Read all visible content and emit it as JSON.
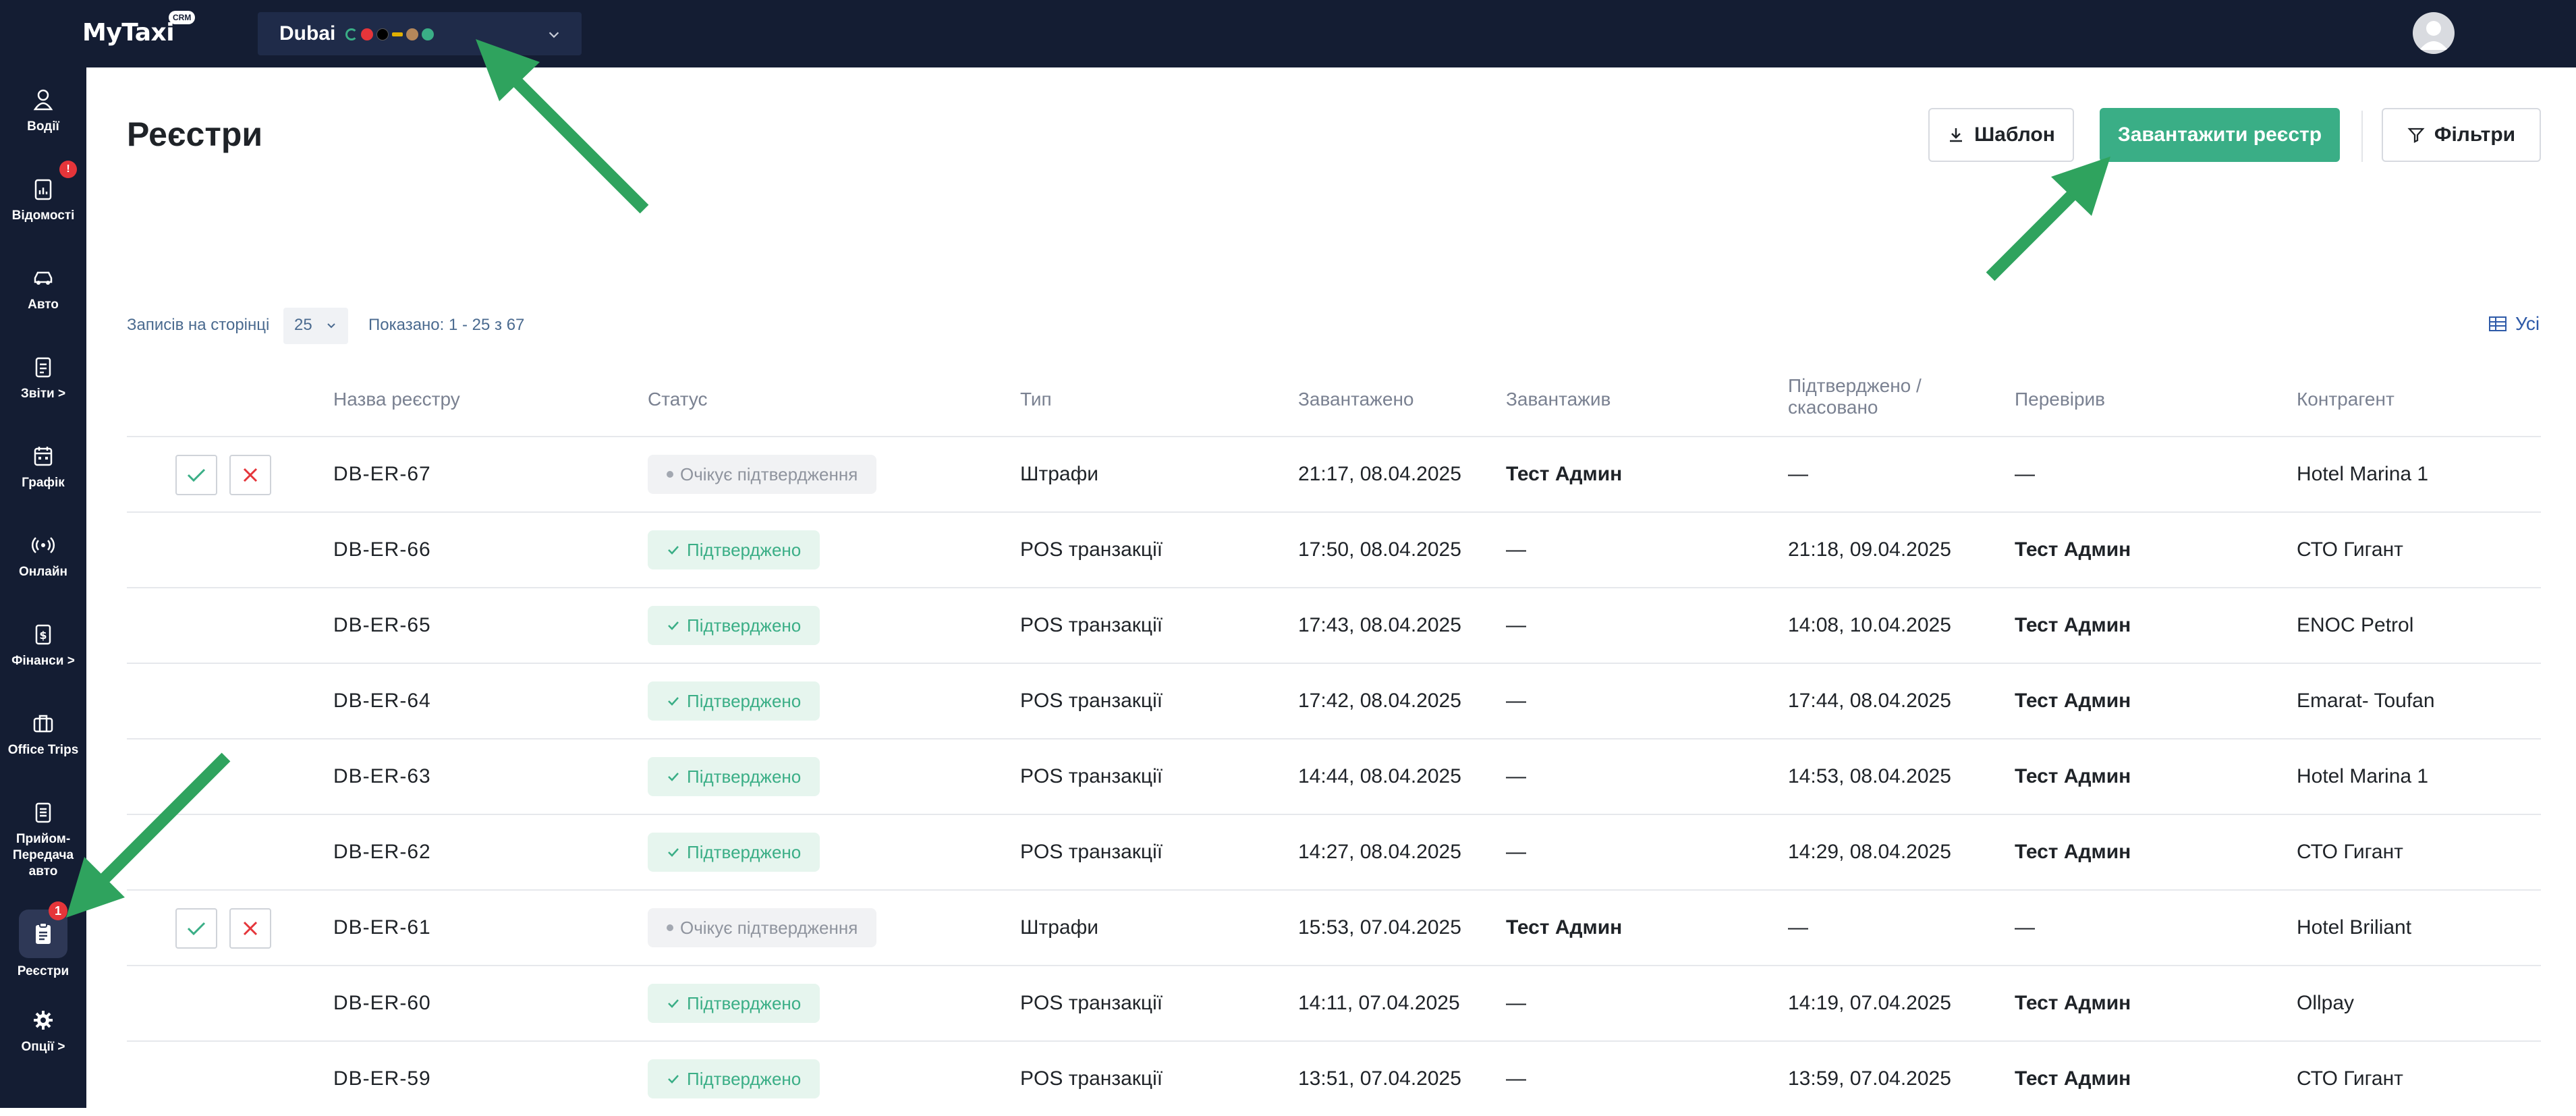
{
  "app": {
    "logo": "MyTaxi",
    "logo_badge": "CRM"
  },
  "city": {
    "name": "Dubai"
  },
  "sidebar": {
    "items": [
      {
        "label": "Водії",
        "icon": "user-icon"
      },
      {
        "label": "Відомості",
        "icon": "clipboard-chart-icon",
        "badge": "!"
      },
      {
        "label": "Авто",
        "icon": "car-icon"
      },
      {
        "label": "Звіти >",
        "icon": "report-icon"
      },
      {
        "label": "Графік",
        "icon": "calendar-icon"
      },
      {
        "label": "Онлайн",
        "icon": "broadcast-icon"
      },
      {
        "label": "Фінанси >",
        "icon": "finance-icon"
      },
      {
        "label": "Office Trips",
        "icon": "briefcase-icon"
      },
      {
        "label": "Прийом-Передача авто",
        "icon": "document-icon"
      },
      {
        "label": "Реєстри",
        "icon": "registry-icon",
        "badge": "1"
      },
      {
        "label": "Опції >",
        "icon": "gear-icon"
      }
    ]
  },
  "page": {
    "title": "Реєстри"
  },
  "toolbar": {
    "template_label": "Шаблон",
    "upload_label": "Завантажити реєстр",
    "filters_label": "Фільтри"
  },
  "pagination": {
    "per_page_label": "Записів на сторінці",
    "per_page_value": "25",
    "shown_text": "Показано: 1 - 25 з 67",
    "columns_label": "Усі"
  },
  "table": {
    "headers": [
      "Назва реєстру",
      "Статус",
      "Тип",
      "Завантажено",
      "Завантажив",
      "Підтверджено / скасовано",
      "Перевірив",
      "Контрагент"
    ],
    "rows": [
      {
        "name": "DB-ER-67",
        "status": "Очікує підтвердження",
        "status_kind": "pending",
        "type": "Штрафи",
        "uploaded": "21:17, 08.04.2025",
        "uploader": "Тест Админ",
        "confirmed": "—",
        "checker": "—",
        "counterparty": "Hotel Marina 1",
        "actions": true
      },
      {
        "name": "DB-ER-66",
        "status": "Підтверджено",
        "status_kind": "ok",
        "type": "POS транзакції",
        "uploaded": "17:50, 08.04.2025",
        "uploader": "—",
        "confirmed": "21:18, 09.04.2025",
        "checker": "Тест Админ",
        "counterparty": "СТО Гигант",
        "actions": false
      },
      {
        "name": "DB-ER-65",
        "status": "Підтверджено",
        "status_kind": "ok",
        "type": "POS транзакції",
        "uploaded": "17:43, 08.04.2025",
        "uploader": "—",
        "confirmed": "14:08, 10.04.2025",
        "checker": "Тест Админ",
        "counterparty": "ENOC Petrol",
        "actions": false
      },
      {
        "name": "DB-ER-64",
        "status": "Підтверджено",
        "status_kind": "ok",
        "type": "POS транзакції",
        "uploaded": "17:42, 08.04.2025",
        "uploader": "—",
        "confirmed": "17:44, 08.04.2025",
        "checker": "Тест Админ",
        "counterparty": "Emarat- Toufan",
        "actions": false
      },
      {
        "name": "DB-ER-63",
        "status": "Підтверджено",
        "status_kind": "ok",
        "type": "POS транзакції",
        "uploaded": "14:44, 08.04.2025",
        "uploader": "—",
        "confirmed": "14:53, 08.04.2025",
        "checker": "Тест Админ",
        "counterparty": "Hotel Marina 1",
        "actions": false
      },
      {
        "name": "DB-ER-62",
        "status": "Підтверджено",
        "status_kind": "ok",
        "type": "POS транзакції",
        "uploaded": "14:27, 08.04.2025",
        "uploader": "—",
        "confirmed": "14:29, 08.04.2025",
        "checker": "Тест Админ",
        "counterparty": "СТО Гигант",
        "actions": false
      },
      {
        "name": "DB-ER-61",
        "status": "Очікує підтвердження",
        "status_kind": "pending",
        "type": "Штрафи",
        "uploaded": "15:53, 07.04.2025",
        "uploader": "Тест Админ",
        "confirmed": "—",
        "checker": "—",
        "counterparty": "Hotel Briliant",
        "actions": true
      },
      {
        "name": "DB-ER-60",
        "status": "Підтверджено",
        "status_kind": "ok",
        "type": "POS транзакції",
        "uploaded": "14:11, 07.04.2025",
        "uploader": "—",
        "confirmed": "14:19, 07.04.2025",
        "checker": "Тест Админ",
        "counterparty": "Ollpay",
        "actions": false
      },
      {
        "name": "DB-ER-59",
        "status": "Підтверджено",
        "status_kind": "ok",
        "type": "POS транзакції",
        "uploaded": "13:51, 07.04.2025",
        "uploader": "—",
        "confirmed": "13:59, 07.04.2025",
        "checker": "Тест Админ",
        "counterparty": "СТО Гигант",
        "actions": false
      }
    ]
  },
  "colors": {
    "accent": "#3aae86",
    "nav_bg": "#141d33",
    "danger": "#e5353a",
    "annotation_arrow": "#2fa35e"
  }
}
